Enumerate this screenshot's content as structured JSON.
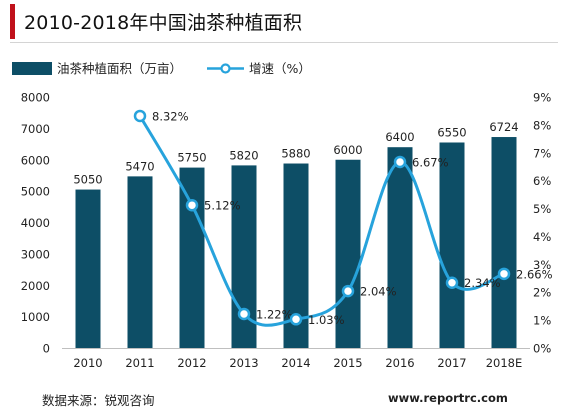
{
  "title": "2010-2018年中国油茶种植面积",
  "source": "数据来源：锐观咨询",
  "website": "www.reportrc.com",
  "colors": {
    "bar": "#0d4e66",
    "line": "#27a3dc",
    "marker_fill": "#ffffff",
    "title_accent": "#c0111b"
  },
  "chart_data": {
    "type": "bar",
    "categories": [
      "2010",
      "2011",
      "2012",
      "2013",
      "2014",
      "2015",
      "2016",
      "2017",
      "2018E"
    ],
    "series": [
      {
        "name": "油茶种植面积（万亩）",
        "type": "bar",
        "axis": "left",
        "values": [
          5050,
          5470,
          5750,
          5820,
          5880,
          6000,
          6400,
          6550,
          6724
        ],
        "labels": [
          "5050",
          "5470",
          "5750",
          "5820",
          "5880",
          "6000",
          "6400",
          "6550",
          "6724"
        ]
      },
      {
        "name": "增速（%）",
        "type": "line",
        "axis": "right",
        "values": [
          null,
          8.32,
          5.12,
          1.22,
          1.03,
          2.04,
          6.67,
          2.34,
          2.66
        ],
        "labels": [
          "",
          "8.32%",
          "5.12%",
          "1.22%",
          "1.03%",
          "2.04%",
          "6.67%",
          "2.34%",
          "2.66%"
        ]
      }
    ],
    "y_left": {
      "min": 0,
      "max": 8000,
      "ticks": [
        "0",
        "1000",
        "2000",
        "3000",
        "4000",
        "5000",
        "6000",
        "7000",
        "8000"
      ]
    },
    "y_right": {
      "min": 0,
      "max": 9,
      "ticks": [
        "0%",
        "1%",
        "2%",
        "3%",
        "4%",
        "5%",
        "6%",
        "7%",
        "8%",
        "9%"
      ]
    },
    "legend": "top-left",
    "grid": false
  }
}
